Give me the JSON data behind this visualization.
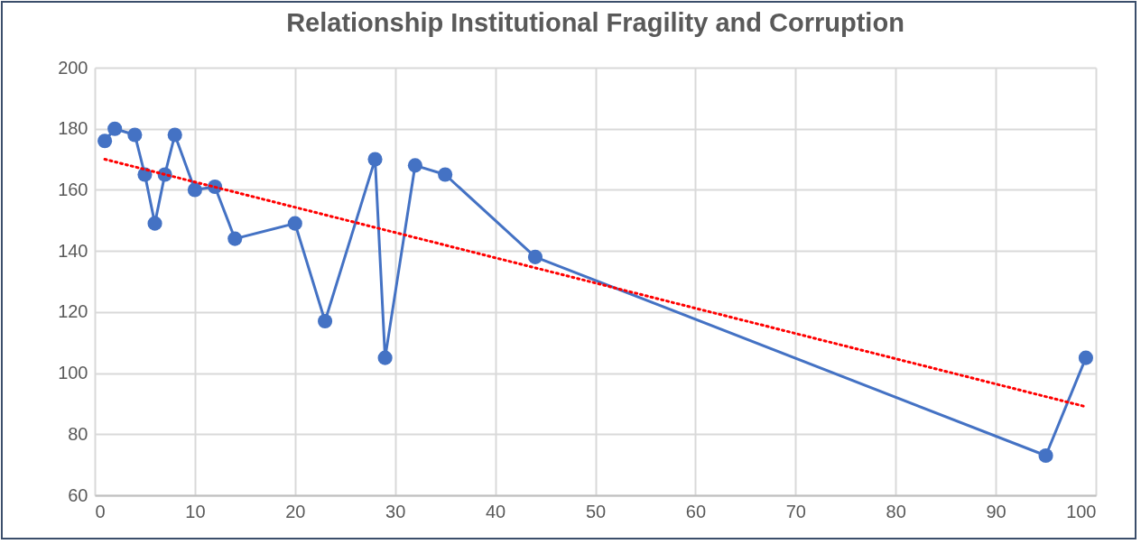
{
  "chart_data": {
    "type": "line",
    "title": "Relationship Institutional Fragility and Corruption",
    "xlim": [
      0,
      100
    ],
    "xticks": [
      0,
      10,
      20,
      30,
      40,
      50,
      60,
      70,
      80,
      90,
      100
    ],
    "ylim": [
      60,
      200
    ],
    "yticks": [
      60,
      80,
      100,
      120,
      140,
      160,
      180,
      200
    ],
    "grid": true,
    "series": [
      {
        "color": "#4472c4",
        "marker": "circle",
        "line_style": "solid",
        "x": [
          1,
          2,
          4,
          5,
          6,
          7,
          8,
          10,
          12,
          14,
          20,
          23,
          28,
          29,
          32,
          35,
          44,
          95,
          99
        ],
        "values": [
          176,
          180,
          178,
          165,
          149,
          165,
          178,
          160,
          161,
          144,
          149,
          117,
          170,
          105,
          168,
          165,
          138,
          73,
          105
        ]
      },
      {
        "type": "line",
        "color": "#ff0000",
        "marker": "none",
        "line_style": "dotted",
        "x": [
          1,
          99
        ],
        "values": [
          170,
          89
        ]
      }
    ]
  }
}
